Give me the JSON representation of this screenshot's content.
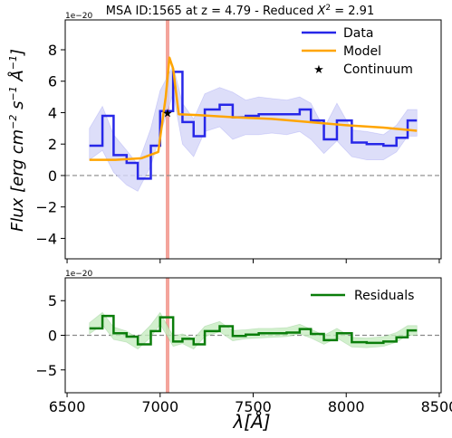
{
  "chart_data": [
    {
      "type": "line",
      "title": "MSA ID:1565 at z = 4.79 - Reduced χ² = 2.91",
      "title_parts": {
        "main": "MSA ID:1565 at z = 4.79 - Reduced ",
        "chi_symbol": "X",
        "chi_exponent": "2",
        "chi_value": " = 2.91"
      },
      "ylabel": "Flux [erg cm⁻² s⁻¹ Å⁻¹]",
      "ylabel_parts": {
        "main": "Flux [erg cm",
        "exp1": "−2",
        "s": " s",
        "exp2": "−1",
        "angstrom": " Å",
        "exp3": "−1",
        "close": "]"
      },
      "offset_text": "1e−20",
      "xlim": [
        6490,
        8510
      ],
      "ylim": [
        -5.3,
        9.9
      ],
      "x_ticks": [
        6500,
        7000,
        7500,
        8000,
        8500
      ],
      "y_ticks": [
        -4,
        -2,
        0,
        2,
        4,
        6,
        8
      ],
      "y_tick_labels": [
        "−4",
        "−2",
        "0",
        "2",
        "4",
        "6",
        "8"
      ],
      "vline_x": 7040,
      "hline_y": 0,
      "legend_position": "top-right",
      "series": [
        {
          "name": "Data",
          "style": "step",
          "color": "#2727e8",
          "x": [
            6620,
            6690,
            6750,
            6820,
            6880,
            6950,
            7000,
            7070,
            7120,
            7180,
            7240,
            7320,
            7390,
            7460,
            7530,
            7600,
            7680,
            7750,
            7810,
            7880,
            7950,
            8030,
            8110,
            8200,
            8270,
            8330,
            8380
          ],
          "y": [
            1.9,
            3.8,
            1.3,
            0.8,
            -0.2,
            1.9,
            4.1,
            6.6,
            3.4,
            2.5,
            4.2,
            4.5,
            3.7,
            3.8,
            3.9,
            3.9,
            3.9,
            4.2,
            3.5,
            2.3,
            3.5,
            2.1,
            2.0,
            1.9,
            2.4,
            3.5,
            3.5
          ],
          "y_lower": [
            1.0,
            1.6,
            0.2,
            -0.6,
            -1.0,
            0.6,
            2.6,
            5.2,
            2.0,
            1.2,
            2.8,
            3.1,
            2.3,
            2.6,
            2.6,
            2.7,
            2.6,
            2.8,
            2.3,
            1.4,
            2.2,
            1.2,
            1.0,
            1.0,
            1.5,
            2.5,
            2.5
          ],
          "y_upper": [
            3.0,
            4.4,
            2.6,
            1.6,
            0.7,
            3.0,
            5.4,
            7.0,
            4.6,
            3.6,
            5.2,
            5.6,
            5.3,
            4.8,
            5.0,
            4.9,
            4.8,
            5.0,
            4.6,
            3.0,
            4.6,
            2.9,
            2.8,
            2.6,
            3.2,
            4.2,
            4.2
          ]
        },
        {
          "name": "Model",
          "style": "line",
          "color": "#ffa500",
          "x": [
            6620,
            6760,
            6900,
            6990,
            7030,
            7050,
            7070,
            7100,
            7200,
            7400,
            7600,
            7800,
            8000,
            8200,
            8380
          ],
          "y": [
            1.0,
            1.0,
            1.1,
            1.5,
            5.0,
            7.5,
            6.8,
            3.9,
            3.85,
            3.7,
            3.6,
            3.4,
            3.2,
            3.05,
            2.85
          ]
        },
        {
          "name": "Continuum",
          "style": "marker",
          "marker": "star",
          "color": "#000000",
          "x": [
            7040
          ],
          "y": [
            4.0
          ]
        }
      ]
    },
    {
      "type": "line",
      "xlabel": "λ[Å]",
      "offset_text": "1e−20",
      "xlim": [
        6490,
        8510
      ],
      "ylim": [
        -8.3,
        8.3
      ],
      "x_ticks": [
        6500,
        7000,
        7500,
        8000,
        8500
      ],
      "x_tick_labels": [
        "6500",
        "7000",
        "7500",
        "8000",
        "8500"
      ],
      "y_ticks": [
        -5,
        0,
        5
      ],
      "y_tick_labels": [
        "−5",
        "0",
        "5"
      ],
      "vline_x": 7040,
      "hline_y": 0,
      "legend_position": "top-right",
      "series": [
        {
          "name": "Residuals",
          "style": "step",
          "color": "#0a7d0a",
          "x": [
            6620,
            6690,
            6750,
            6820,
            6880,
            6950,
            7000,
            7070,
            7120,
            7180,
            7240,
            7320,
            7390,
            7460,
            7530,
            7600,
            7680,
            7750,
            7810,
            7880,
            7950,
            8030,
            8110,
            8200,
            8270,
            8330,
            8380
          ],
          "y": [
            1.0,
            2.8,
            0.3,
            -0.2,
            -1.3,
            0.6,
            2.6,
            -0.9,
            -0.5,
            -1.3,
            0.6,
            1.3,
            -0.1,
            0.1,
            0.3,
            0.3,
            0.4,
            0.9,
            0.2,
            -0.7,
            0.3,
            -1.0,
            -1.1,
            -0.9,
            -0.3,
            0.7,
            0.7
          ],
          "y_lower": [
            0.2,
            1.5,
            -0.6,
            -1.0,
            -2.0,
            -0.3,
            1.6,
            -1.6,
            -1.2,
            -2.0,
            -0.2,
            0.5,
            -0.8,
            -0.5,
            -0.4,
            -0.3,
            -0.2,
            0.2,
            -0.4,
            -1.3,
            -0.4,
            -1.7,
            -1.8,
            -1.6,
            -1.0,
            0.0,
            0.0
          ],
          "y_upper": [
            1.8,
            3.3,
            1.2,
            0.6,
            -0.4,
            1.5,
            3.3,
            -0.1,
            0.2,
            -0.5,
            1.3,
            2.0,
            0.7,
            0.8,
            1.0,
            1.0,
            1.1,
            1.6,
            0.9,
            0.0,
            1.0,
            -0.3,
            -0.4,
            -0.2,
            0.4,
            1.4,
            1.4
          ]
        }
      ]
    }
  ],
  "colors": {
    "vline": "#f4a49b",
    "hline": "#888888",
    "data_band": "#d4d6f7",
    "resid_band": "#c7ecc0"
  }
}
